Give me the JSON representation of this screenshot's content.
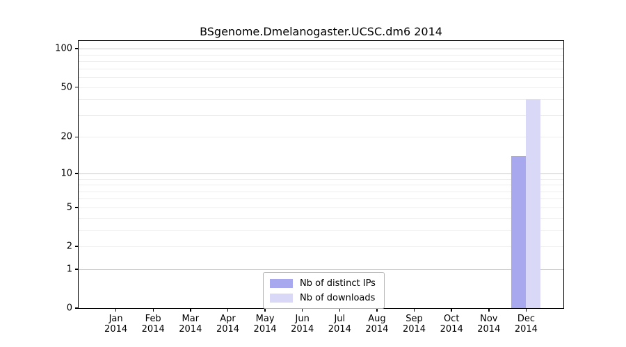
{
  "chart_data": {
    "type": "bar",
    "title": "BSgenome.Dmelanogaster.UCSC.dm6 2014",
    "xlabel": "",
    "ylabel": "",
    "yscale": "log1p",
    "ylim": [
      0,
      112
    ],
    "categories": [
      "Jan",
      "Feb",
      "Mar",
      "Apr",
      "May",
      "Jun",
      "Jul",
      "Aug",
      "Sep",
      "Oct",
      "Nov",
      "Dec"
    ],
    "x_tick_labels": [
      {
        "month": "Jan",
        "year": "2014"
      },
      {
        "month": "Feb",
        "year": "2014"
      },
      {
        "month": "Mar",
        "year": "2014"
      },
      {
        "month": "Apr",
        "year": "2014"
      },
      {
        "month": "May",
        "year": "2014"
      },
      {
        "month": "Jun",
        "year": "2014"
      },
      {
        "month": "Jul",
        "year": "2014"
      },
      {
        "month": "Aug",
        "year": "2014"
      },
      {
        "month": "Sep",
        "year": "2014"
      },
      {
        "month": "Oct",
        "year": "2014"
      },
      {
        "month": "Nov",
        "year": "2014"
      },
      {
        "month": "Dec",
        "year": "2014"
      }
    ],
    "series": [
      {
        "name": "Nb of distinct IPs",
        "color": "#a8a8ee",
        "values": [
          0,
          0,
          0,
          0,
          0,
          0,
          0,
          0,
          0,
          0,
          0,
          14
        ]
      },
      {
        "name": "Nb of downloads",
        "color": "#d9d9f7",
        "values": [
          0,
          0,
          0,
          0,
          0,
          0,
          0,
          0,
          0,
          0,
          0,
          40
        ]
      }
    ],
    "y_ticks": [
      {
        "value": 0,
        "label": "0"
      },
      {
        "value": 1,
        "label": "1"
      },
      {
        "value": 2,
        "label": "2"
      },
      {
        "value": 5,
        "label": "5"
      },
      {
        "value": 10,
        "label": "10"
      },
      {
        "value": 20,
        "label": "20"
      },
      {
        "value": 50,
        "label": "50"
      },
      {
        "value": 100,
        "label": "100"
      }
    ],
    "gridlines": {
      "major": [
        1,
        10,
        100
      ],
      "minor": [
        2,
        3,
        4,
        5,
        6,
        7,
        8,
        9,
        20,
        30,
        40,
        50,
        60,
        70,
        80,
        90
      ],
      "major_color": "#c9c9c9",
      "minor_color": "#ededed"
    },
    "legend": {
      "position": "lower center",
      "items": [
        "Nb of distinct IPs",
        "Nb of downloads"
      ]
    }
  }
}
